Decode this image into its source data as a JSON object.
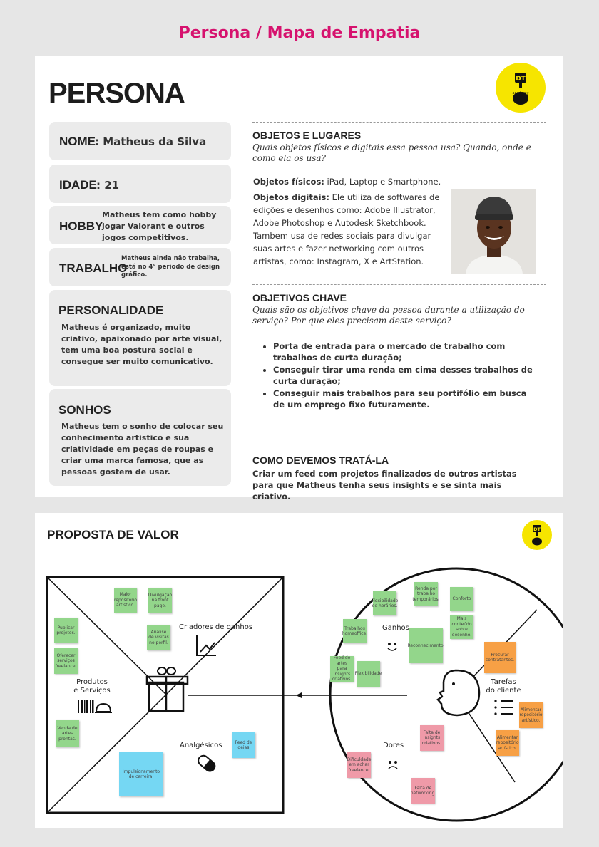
{
  "page_title": "Persona / Mapa de Empatia",
  "persona": {
    "title": "PERSONA",
    "logo_text": "academy",
    "nome": {
      "label": "NOME",
      "value": ": Matheus da Silva"
    },
    "idade": {
      "label": "IDADE",
      "value": ": 21"
    },
    "hobby": {
      "label": "HOBBY",
      "value": "Matheus tem como hobby jogar Valorant e outros jogos competitivos."
    },
    "trabalho": {
      "label": "TRABALHO",
      "value": "Matheus ainda não trabalha, está no 4° periodo de design gráfico."
    },
    "personalidade": {
      "label": "PERSONALIDADE",
      "value": "Matheus é organizado, muito criativo, apaixonado por arte visual, tem uma boa postura social e consegue ser muito comunicativo."
    },
    "sonhos": {
      "label": "SONHOS",
      "value": "Matheus tem o sonho de colocar seu conhecimento artistico e sua criatividade em peças de roupas e criar uma marca famosa, que as pessoas gostem de usar."
    },
    "objetos": {
      "title": "OBJETOS E LUGARES",
      "question": "Quais objetos físicos e digitais essa pessoa usa? Quando, onde e como ela os usa?",
      "fisicos_label": "Objetos físicos:",
      "fisicos_value": " iPad, Laptop e Smartphone.",
      "digitais_label": "Objetos digitais:",
      "digitais_value": " Ele utiliza de softwares de edições e desenhos como: Adobe Illustrator, Adobe Photoshop e Autodesk Sketchbook. Tambem usa de redes sociais para divulgar suas artes e fazer networking com outros artistas, como: Instagram, X e ArtStation."
    },
    "objetivos": {
      "title": "OBJETIVOS CHAVE",
      "question": "Quais são os objetivos chave da pessoa durante a utilização do serviço? Por que eles precisam deste serviço?",
      "items": [
        "Porta de entrada para o mercado de trabalho com trabalhos de curta duração;",
        "Conseguir tirar uma renda em cima desses trabalhos de curta duração;",
        "Conseguir mais trabalhos para seu portifólio em busca de um emprego fixo futuramente."
      ]
    },
    "tratar": {
      "title": "COMO DEVEMOS TRATÁ-LA",
      "value": "Criar um feed com projetos finalizados de outros artistas para que Matheus tenha seus insights e se sinta mais criativo."
    }
  },
  "proposta": {
    "title": "PROPOSTA DE VALOR",
    "labels": {
      "criadores": "Criadores de ganhos",
      "produtos": "Produtos\ne Serviços",
      "analgesicos": "Analgésicos",
      "ganhos": "Ganhos",
      "tarefas": "Tarefas\ndo cliente",
      "dores": "Dores"
    },
    "notes": {
      "n1": "Maior repositório artístico.",
      "n2": "Divulgação na front page.",
      "n3": "Análise de visitas no perfil.",
      "n4": "Publicar projetos.",
      "n5": "Oferecer serviços freelance.",
      "n6": "Venda de artes prontas.",
      "n7": "Feed de ideias.",
      "n8": "Impulsionamento de carreira.",
      "n9": "Flexibilidade de horários.",
      "n10": "Renda por trabalho temporários.",
      "n11": "Conforto",
      "n12": "Trabalhos homeoffice.",
      "n13": "Mais conteúdo sobre desenho.",
      "n14": "Reconhecimento.",
      "n15": "Feed de artes para insights criativos.",
      "n16": "Flexibilidade",
      "n17": "Procurar contratantes.",
      "n18": "Alimentar repositório artístico.",
      "n19": "Alimentar repositório artístico.",
      "n20": "Falta de insights criativos.",
      "n21": "Dificuldade em achar freelance.",
      "n22": "Falta de networking."
    }
  }
}
